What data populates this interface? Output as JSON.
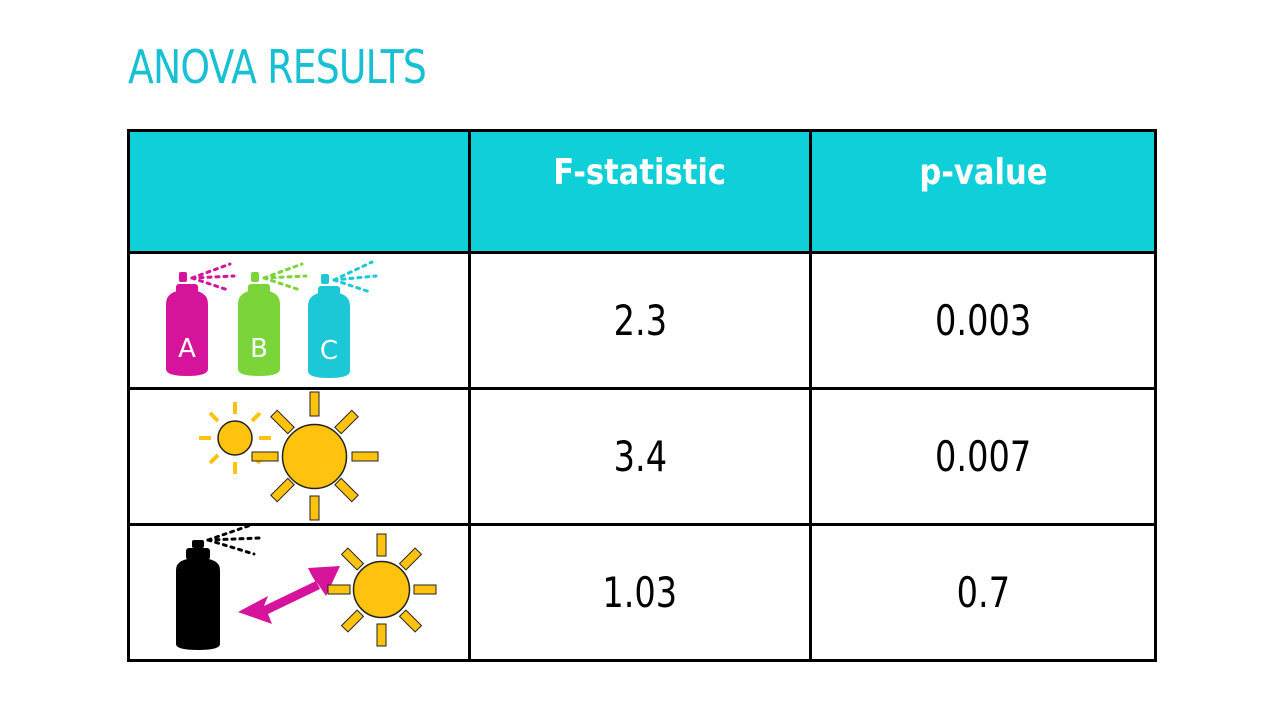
{
  "title": "ANOVA RESULTS",
  "table": {
    "headers": [
      "",
      "F-statistic",
      "p-value"
    ],
    "rows": [
      {
        "icon": "spray-cans-abc-icon",
        "labels": [
          "A",
          "B",
          "C"
        ],
        "f_statistic": "2.3",
        "p_value": "0.003"
      },
      {
        "icon": "suns-icon",
        "f_statistic": "3.4",
        "p_value": "0.007"
      },
      {
        "icon": "spray-sun-interaction-icon",
        "f_statistic": "1.03",
        "p_value": "0.7"
      }
    ]
  },
  "colors": {
    "title": "#17c0d3",
    "header_bg": "#0fcfd9",
    "spray_a": "#d6139b",
    "spray_b": "#7ad43a",
    "spray_c": "#1cc8d6",
    "sun": "#ffc20e",
    "arrow": "#d6139b"
  }
}
